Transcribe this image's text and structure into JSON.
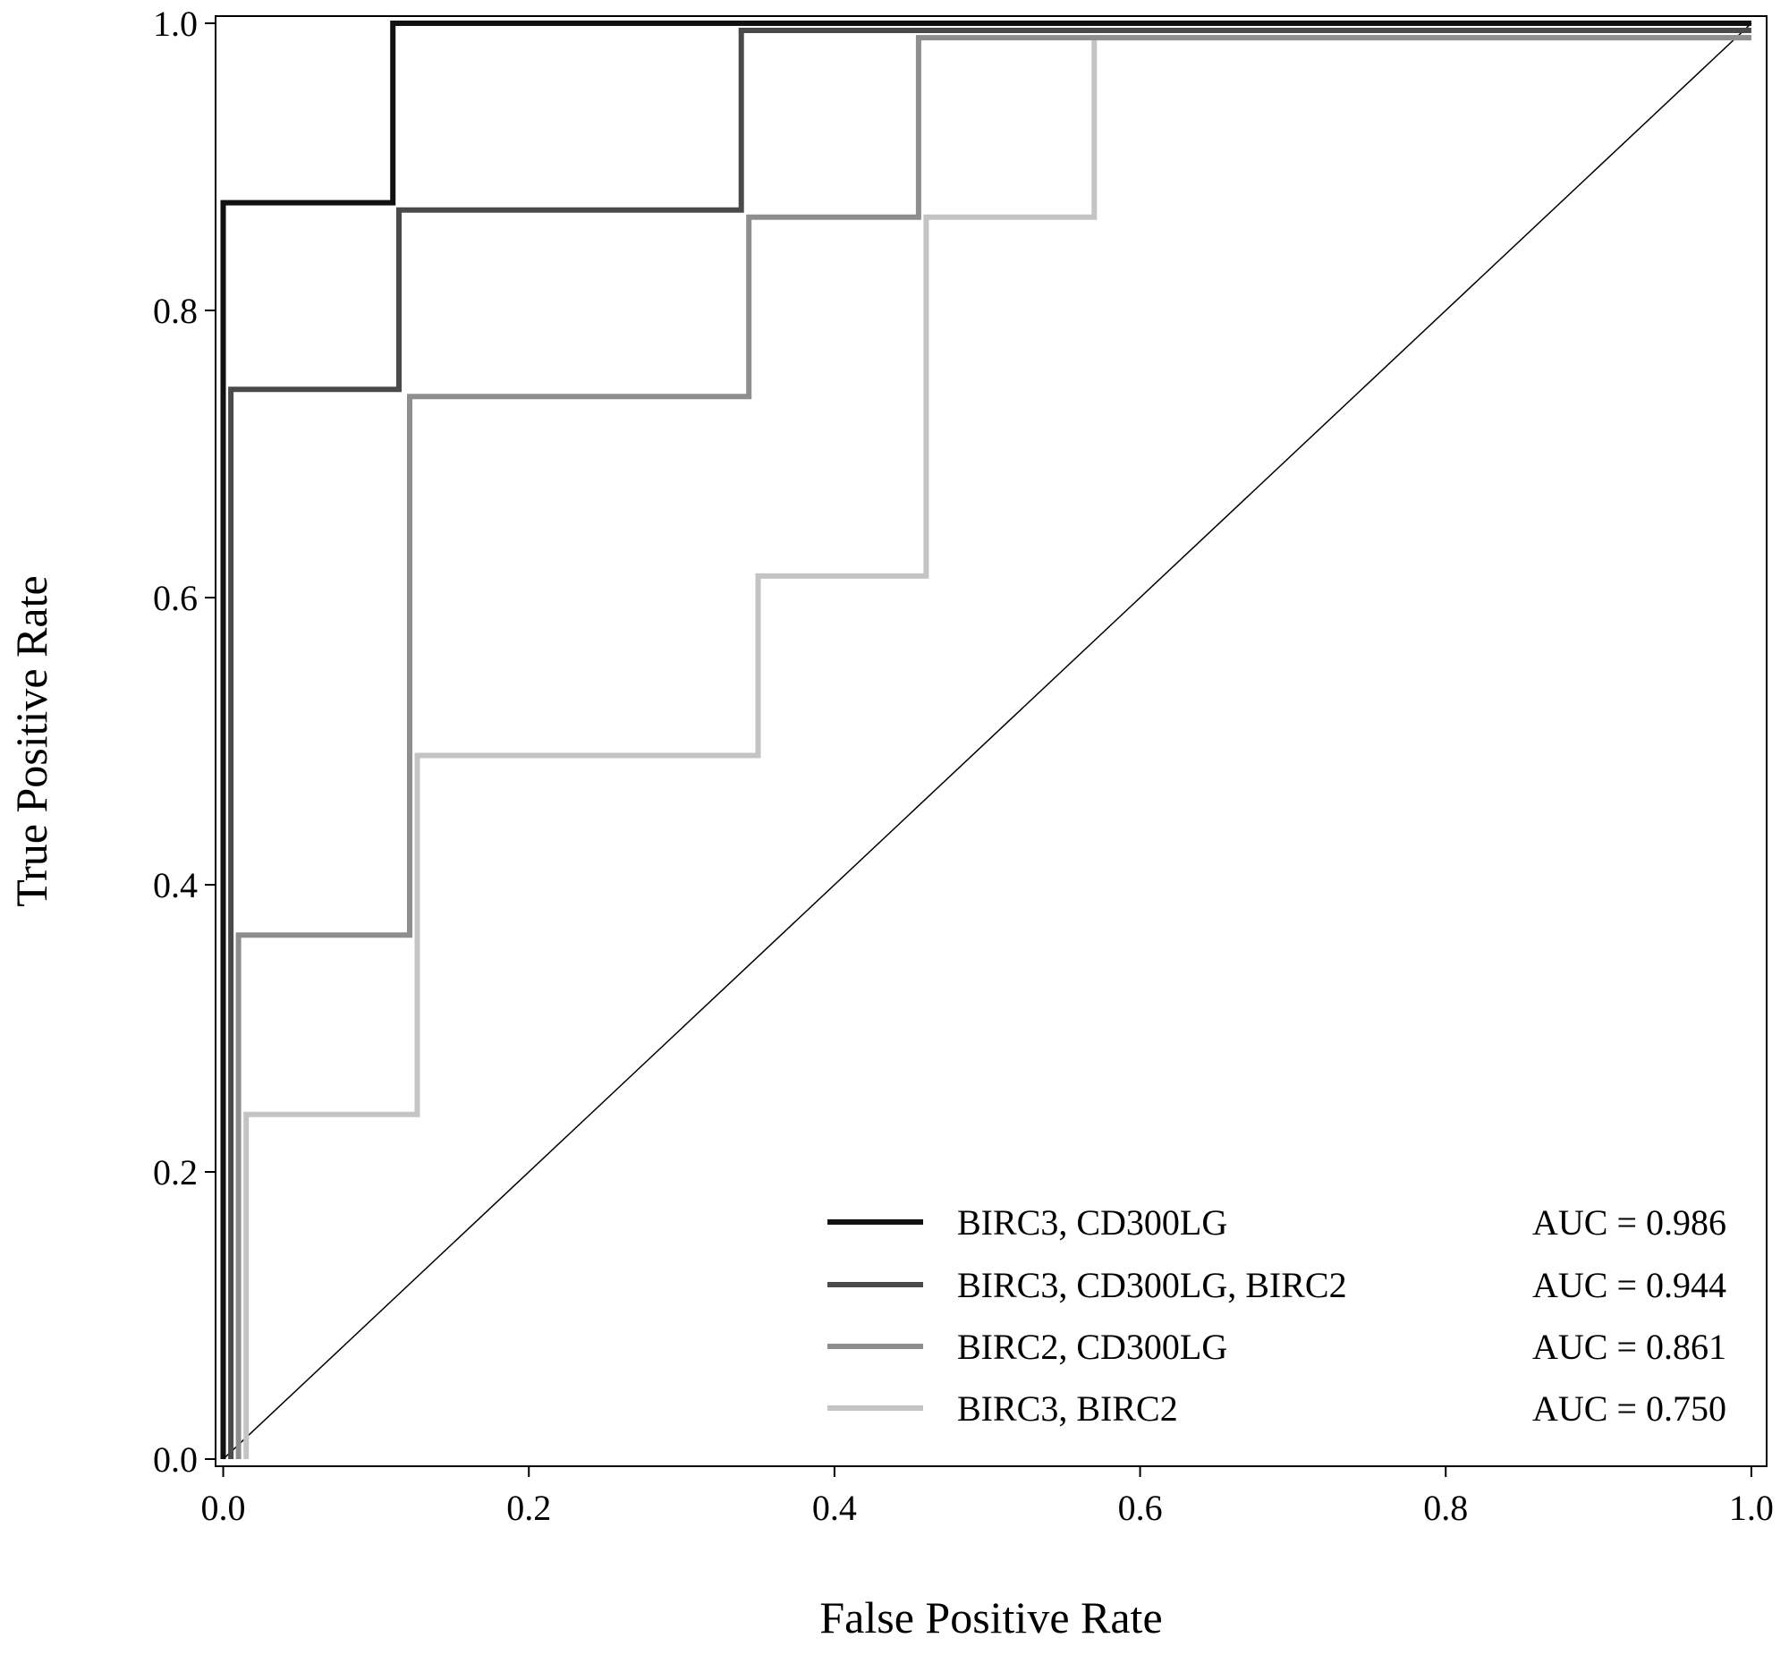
{
  "chart_data": {
    "type": "line",
    "title": "",
    "xlabel": "False Positive Rate",
    "ylabel": "True Positive Rate",
    "xlim": [
      -0.005,
      1.01
    ],
    "ylim": [
      -0.005,
      1.005
    ],
    "xticks": [
      "0.0",
      "0.2",
      "0.4",
      "0.6",
      "0.8",
      "1.0"
    ],
    "yticks": [
      "0.0",
      "0.2",
      "0.4",
      "0.6",
      "0.8",
      "1.0"
    ],
    "grid": false,
    "legend_position": "lower-right",
    "reference_line": {
      "x": [
        0,
        1
      ],
      "y": [
        0,
        1
      ],
      "color": "#000000"
    },
    "series": [
      {
        "name": "BIRC3, CD300LG",
        "auc_label": "AUC = 0.986",
        "color": "#111111",
        "x": [
          0.0,
          0.0,
          0.111,
          0.111,
          1.0
        ],
        "y": [
          0.0,
          0.875,
          0.875,
          1.0,
          1.0
        ]
      },
      {
        "name": "BIRC3, CD300LG, BIRC2",
        "auc_label": "AUC = 0.944",
        "color": "#4a4a4a",
        "x": [
          0.005,
          0.005,
          0.115,
          0.115,
          0.339,
          0.339,
          1.0
        ],
        "y": [
          0.0,
          0.745,
          0.745,
          0.87,
          0.87,
          0.995,
          0.995
        ]
      },
      {
        "name": "BIRC2, CD300LG",
        "auc_label": "AUC = 0.861",
        "color": "#8e8e8e",
        "x": [
          0.01,
          0.01,
          0.122,
          0.122,
          0.344,
          0.344,
          0.455,
          0.455,
          1.0
        ],
        "y": [
          0.0,
          0.365,
          0.365,
          0.74,
          0.74,
          0.865,
          0.865,
          0.99,
          0.99
        ]
      },
      {
        "name": "BIRC3, BIRC2",
        "auc_label": "AUC = 0.750",
        "color": "#c4c4c4",
        "x": [
          0.015,
          0.015,
          0.127,
          0.127,
          0.35,
          0.35,
          0.46,
          0.46,
          0.57,
          0.57,
          1.0
        ],
        "y": [
          0.0,
          0.24,
          0.24,
          0.49,
          0.49,
          0.615,
          0.615,
          0.865,
          0.865,
          0.99,
          0.99
        ]
      }
    ]
  }
}
